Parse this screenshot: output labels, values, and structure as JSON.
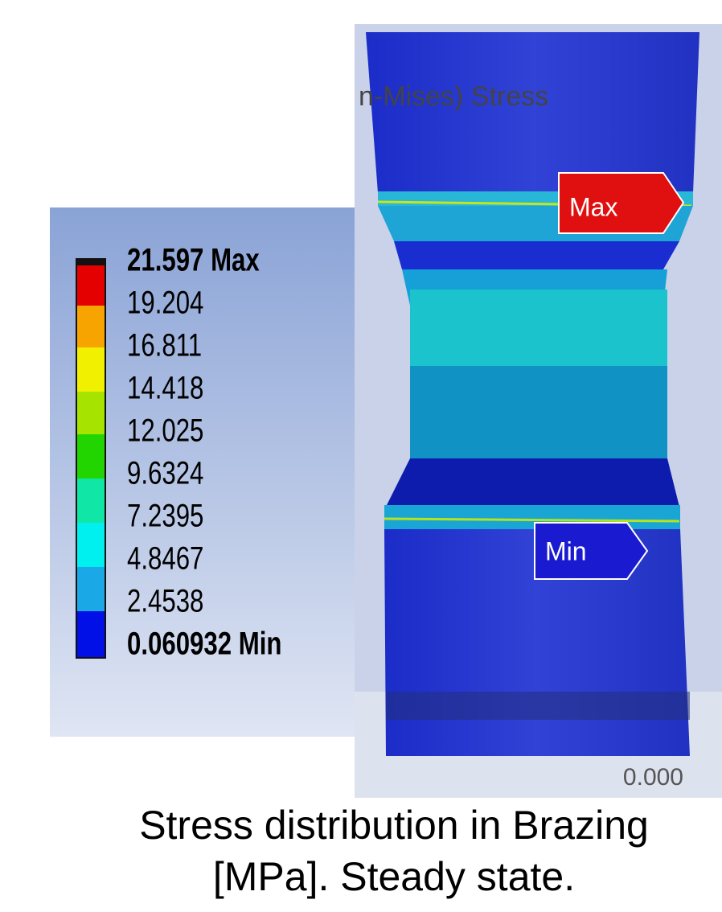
{
  "legend": {
    "labels": [
      "21.597 Max",
      "19.204",
      "16.811",
      "14.418",
      "12.025",
      "9.6324",
      "7.2395",
      "4.8467",
      "2.4538",
      "0.060932 Min"
    ]
  },
  "viewport": {
    "title": "n-Mises) Stress",
    "max_marker": "Max",
    "min_marker": "Min",
    "scale_label": "0.000"
  },
  "caption": {
    "line1": "Stress distribution in Brazing",
    "line2": "[MPa]. Steady state."
  }
}
